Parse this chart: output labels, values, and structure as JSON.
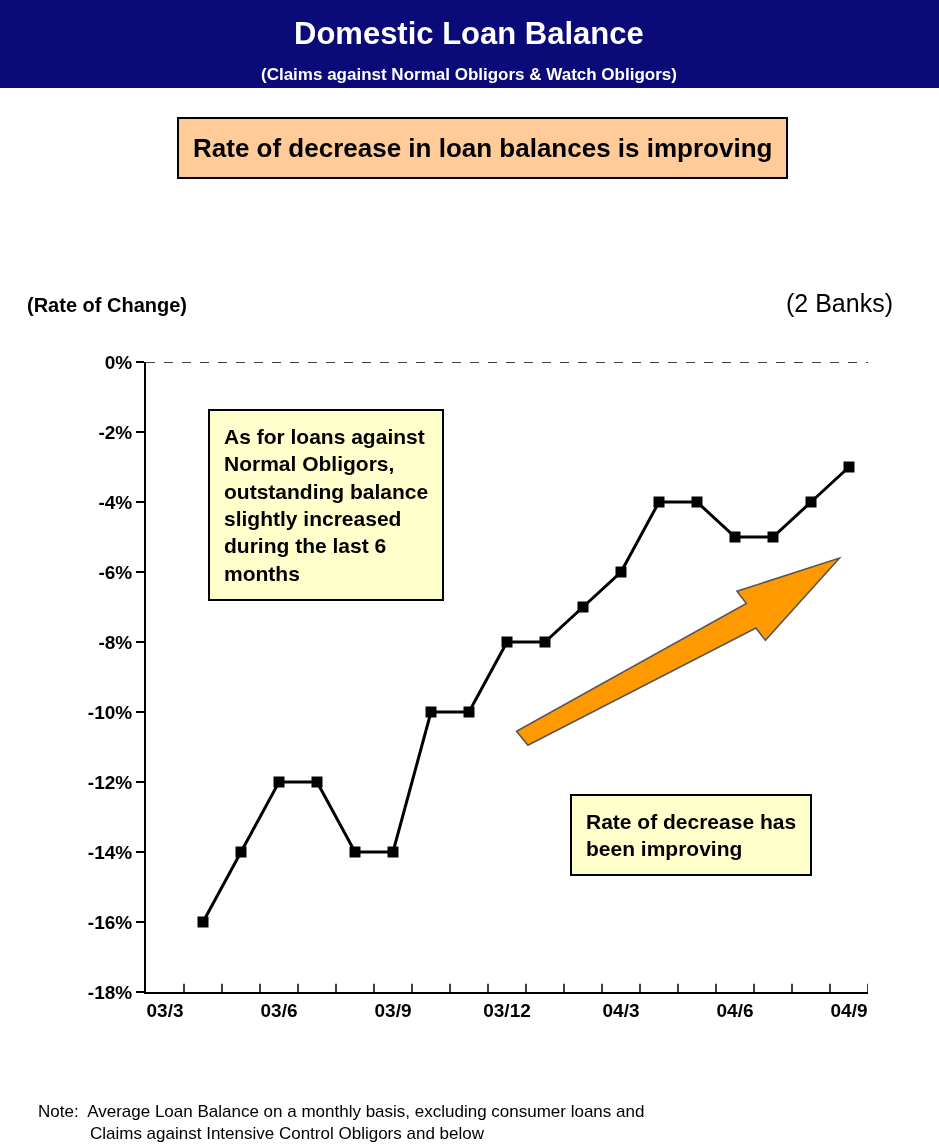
{
  "chart_data": {
    "type": "line",
    "title": "Domestic Loan Balance",
    "subtitle": "(Claims against Normal Obligors & Watch Obligors)",
    "ylabel": "(Rate of Change)",
    "annotations": [
      "Rate of decrease in loan balances is improving",
      "(2 Banks)",
      "As for loans against\nNormal Obligors,\noutstanding balance\nslightly increased\nduring the last 6\nmonths",
      "Rate of decrease has\nbeen improving",
      "Note:  Average Loan Balance on a monthly basis, excluding consumer loans and\n           Claims against Intensive Control Obligors and below"
    ],
    "categories": [
      "03/3",
      null,
      null,
      "03/6",
      null,
      null,
      "03/9",
      null,
      null,
      "03/12",
      null,
      null,
      "04/3",
      null,
      null,
      "04/6",
      null,
      null,
      "04/9"
    ],
    "series": [
      {
        "color": "#000000",
        "values": [
          null,
          -16,
          -14,
          -12,
          -12,
          -14,
          -14,
          -10,
          -10,
          -8,
          -8,
          -7,
          -6,
          -4,
          -4,
          -5,
          -5,
          -4,
          -3
        ]
      }
    ],
    "ylim": [
      -18,
      0
    ],
    "yticks": [
      {
        "value": 0,
        "label": "0%"
      },
      {
        "value": -2,
        "label": "-2%"
      },
      {
        "value": -4,
        "label": "-4%"
      },
      {
        "value": -6,
        "label": "-6%"
      },
      {
        "value": -8,
        "label": "-8%"
      },
      {
        "value": -10,
        "label": "-10%"
      },
      {
        "value": -12,
        "label": "-12%"
      },
      {
        "value": -14,
        "label": "-14%"
      },
      {
        "value": -16,
        "label": "-16%"
      },
      {
        "value": -18,
        "label": "-18%"
      }
    ],
    "ref_lines": [
      {
        "axis": "y",
        "value": 0,
        "color": "#000000",
        "line_style": "dashed"
      }
    ],
    "marker": "square",
    "line_style": "solid"
  }
}
